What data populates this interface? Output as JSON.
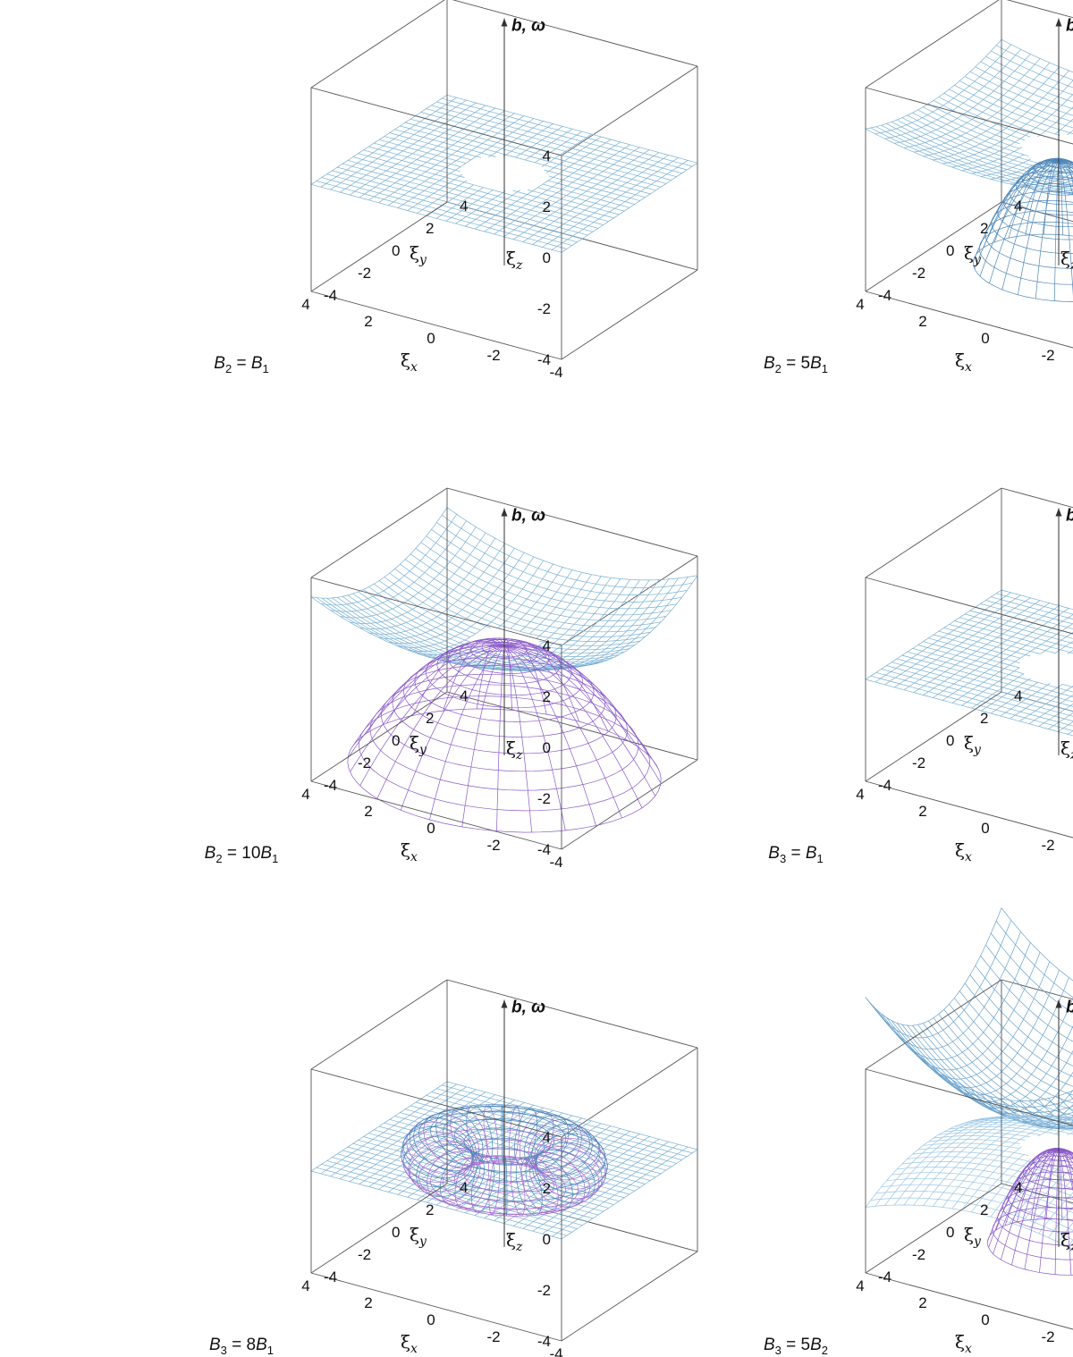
{
  "chart_data": [
    {
      "type": "surface3d",
      "caption": "B2 = B1",
      "caption_parts": {
        "lhs": "B",
        "lhs_sub": "2",
        "coef": "",
        "rhs": "B",
        "rhs_sub": "1"
      },
      "xlabel": "ξx",
      "ylabel": "ξy",
      "zlabel": "ξz",
      "xlim": [
        -4,
        4
      ],
      "ylim": [
        -4,
        4
      ],
      "zlim": [
        -4,
        4
      ],
      "ticks": [
        "-4",
        "-2",
        "0",
        "2",
        "4"
      ],
      "arrow_label": "b, ω",
      "sheets": [
        {
          "kind": "sheet",
          "base": 0.2,
          "curv": 0.0,
          "hole": 1.2,
          "color": "#7ab0d4"
        }
      ]
    },
    {
      "type": "surface3d",
      "caption": "B2 = 5B1",
      "caption_parts": {
        "lhs": "B",
        "lhs_sub": "2",
        "coef": "5",
        "rhs": "B",
        "rhs_sub": "1"
      },
      "xlabel": "ξx",
      "ylabel": "ξy",
      "zlabel": "ξz",
      "xlim": [
        -4,
        4
      ],
      "ylim": [
        -4,
        4
      ],
      "zlim": [
        -4,
        4
      ],
      "ticks": [
        "-4",
        "-2",
        "0",
        "2",
        "4"
      ],
      "arrow_label": "b, ω",
      "sheets": [
        {
          "kind": "sheet",
          "base": 1.1,
          "curv": 0.04,
          "hole": 1.0,
          "color": "#7ab0d4"
        },
        {
          "kind": "dome",
          "top": 0.7,
          "radius": 2.4,
          "bottom": -3.5,
          "color": "#4e86b8"
        }
      ]
    },
    {
      "type": "surface3d",
      "caption": "B2 = 10B1",
      "caption_parts": {
        "lhs": "B",
        "lhs_sub": "2",
        "coef": "10",
        "rhs": "B",
        "rhs_sub": "1"
      },
      "xlabel": "ξx",
      "ylabel": "ξy",
      "zlabel": "ξz",
      "xlim": [
        -4,
        4
      ],
      "ylim": [
        -4,
        4
      ],
      "zlim": [
        -4,
        4
      ],
      "ticks": [
        "-4",
        "-2",
        "0",
        "2",
        "4"
      ],
      "arrow_label": "b, ω",
      "sheets": [
        {
          "kind": "sheet",
          "base": 1.0,
          "curv": 0.07,
          "hole": 0.9,
          "color": "#7ab0d4"
        },
        {
          "kind": "dome",
          "top": 0.9,
          "radius": 4.4,
          "bottom": -4.0,
          "color": "#8a5ac8"
        }
      ]
    },
    {
      "type": "surface3d",
      "caption": "B3 = B1",
      "caption_parts": {
        "lhs": "B",
        "lhs_sub": "3",
        "coef": "",
        "rhs": "B",
        "rhs_sub": "1"
      },
      "xlabel": "ξx",
      "ylabel": "ξy",
      "zlabel": "ξz",
      "xlim": [
        -4,
        4
      ],
      "ylim": [
        -4,
        4
      ],
      "zlim": [
        -4,
        4
      ],
      "ticks": [
        "-4",
        "-2",
        "0",
        "2",
        "4"
      ],
      "arrow_label": "b, ω",
      "sheets": [
        {
          "kind": "sheet",
          "base": 0.0,
          "curv": 0.0,
          "hole": 1.1,
          "color": "#7ab0d4"
        }
      ]
    },
    {
      "type": "surface3d",
      "caption": "B3 = 8B1",
      "caption_parts": {
        "lhs": "B",
        "lhs_sub": "3",
        "coef": "8",
        "rhs": "B",
        "rhs_sub": "1"
      },
      "xlabel": "ξx",
      "ylabel": "ξy",
      "zlabel": "ξz",
      "xlim": [
        -4,
        4
      ],
      "ylim": [
        -4,
        4
      ],
      "zlim": [
        -4,
        4
      ],
      "ticks": [
        "-4",
        "-2",
        "0",
        "2",
        "4"
      ],
      "arrow_label": "b, ω",
      "sheets": [
        {
          "kind": "sheet",
          "base": 0.0,
          "curv": 0.0,
          "hole": 0.9,
          "color": "#7ab0d4"
        },
        {
          "kind": "torus",
          "R": 1.9,
          "r": 1.0,
          "color_top": "#4e86b8",
          "color_bottom": "#a86ad0"
        }
      ]
    },
    {
      "type": "surface3d",
      "caption": "B3 = 5B2",
      "caption_parts": {
        "lhs": "B",
        "lhs_sub": "3",
        "coef": "5",
        "rhs": "B",
        "rhs_sub": "2"
      },
      "xlabel": "ξx",
      "ylabel": "ξy",
      "zlabel": "ξz",
      "xlim": [
        -4,
        4
      ],
      "ylim": [
        -4,
        4
      ],
      "zlim": [
        -4,
        4
      ],
      "ticks": [
        "-4",
        "-2",
        "0",
        "2",
        "4"
      ],
      "arrow_label": "b, ω",
      "sheets": [
        {
          "kind": "bowl",
          "base": 1.7,
          "curv": 0.16,
          "hole": 0.0,
          "color": "#6aa2cc"
        },
        {
          "kind": "sheet",
          "base": 0.5,
          "curv": -0.06,
          "hole": 1.0,
          "color": "#9cc6e4"
        },
        {
          "kind": "dome",
          "top": 0.4,
          "radius": 2.0,
          "bottom": -3.4,
          "color": "#8a5ac8"
        }
      ]
    }
  ]
}
